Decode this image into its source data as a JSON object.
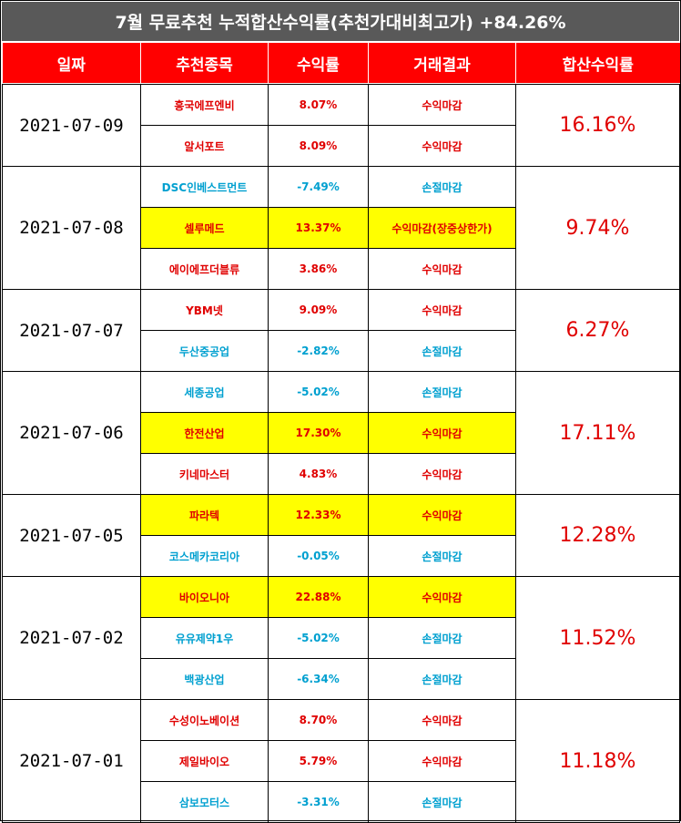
{
  "title": "7월 무료추천 누적합산수익률(추천가대비최고가) +84.26%",
  "headers": [
    "일짜",
    "추천종목",
    "수익률",
    "거래결과",
    "합산수익률"
  ],
  "colors": {
    "header_bg": "#ff0000",
    "title_bg": "#595959",
    "profit": "#e00000",
    "loss": "#00a0d0",
    "highlight": "#ffff00"
  },
  "groups": [
    {
      "date": "2021-07-09",
      "total": "16.16%",
      "rows": [
        {
          "stock": "흥국에프엔비",
          "return": "8.07%",
          "result": "수익마감",
          "tone": "red",
          "hl": false
        },
        {
          "stock": "알서포트",
          "return": "8.09%",
          "result": "수익마감",
          "tone": "red",
          "hl": false
        }
      ]
    },
    {
      "date": "2021-07-08",
      "total": "9.74%",
      "rows": [
        {
          "stock": "DSC인베스트먼트",
          "return": "-7.49%",
          "result": "손절마감",
          "tone": "blue",
          "hl": false
        },
        {
          "stock": "셀루메드",
          "return": "13.37%",
          "result": "수익마감(장중상한가)",
          "tone": "red",
          "hl": true
        },
        {
          "stock": "에이에프더블류",
          "return": "3.86%",
          "result": "수익마감",
          "tone": "red",
          "hl": false
        }
      ]
    },
    {
      "date": "2021-07-07",
      "total": "6.27%",
      "rows": [
        {
          "stock": "YBM넷",
          "return": "9.09%",
          "result": "수익마감",
          "tone": "red",
          "hl": false
        },
        {
          "stock": "두산중공업",
          "return": "-2.82%",
          "result": "손절마감",
          "tone": "blue",
          "hl": false
        }
      ]
    },
    {
      "date": "2021-07-06",
      "total": "17.11%",
      "rows": [
        {
          "stock": "세종공업",
          "return": "-5.02%",
          "result": "손절마감",
          "tone": "blue",
          "hl": false
        },
        {
          "stock": "한전산업",
          "return": "17.30%",
          "result": "수익마감",
          "tone": "red",
          "hl": true
        },
        {
          "stock": "키네마스터",
          "return": "4.83%",
          "result": "수익마감",
          "tone": "red",
          "hl": false
        }
      ]
    },
    {
      "date": "2021-07-05",
      "total": "12.28%",
      "rows": [
        {
          "stock": "파라텍",
          "return": "12.33%",
          "result": "수익마감",
          "tone": "red",
          "hl": true
        },
        {
          "stock": "코스메카코리아",
          "return": "-0.05%",
          "result": "손절마감",
          "tone": "blue",
          "hl": false
        }
      ]
    },
    {
      "date": "2021-07-02",
      "total": "11.52%",
      "rows": [
        {
          "stock": "바이오니아",
          "return": "22.88%",
          "result": "수익마감",
          "tone": "red",
          "hl": true
        },
        {
          "stock": "유유제약1우",
          "return": "-5.02%",
          "result": "손절마감",
          "tone": "blue",
          "hl": false
        },
        {
          "stock": "백광산업",
          "return": "-6.34%",
          "result": "손절마감",
          "tone": "blue",
          "hl": false
        }
      ]
    },
    {
      "date": "2021-07-01",
      "total": "11.18%",
      "rows": [
        {
          "stock": "수성이노베이션",
          "return": "8.70%",
          "result": "수익마감",
          "tone": "red",
          "hl": false
        },
        {
          "stock": "제일바이오",
          "return": "5.79%",
          "result": "수익마감",
          "tone": "red",
          "hl": false
        },
        {
          "stock": "삼보모터스",
          "return": "-3.31%",
          "result": "손절마감",
          "tone": "blue",
          "hl": false
        }
      ]
    }
  ]
}
